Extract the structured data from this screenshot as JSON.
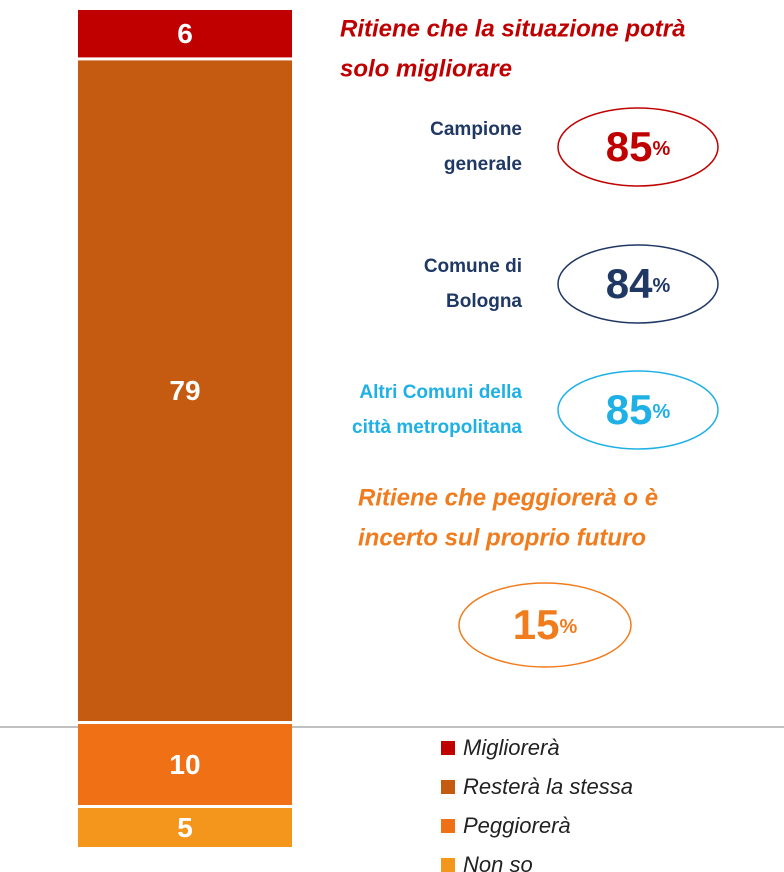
{
  "chart_data": {
    "type": "bar",
    "series": [
      {
        "name": "Migliorerà",
        "color": "#c00000",
        "values": [
          6
        ]
      },
      {
        "name": "Resterà la stessa",
        "color": "#c55a11",
        "values": [
          79
        ]
      },
      {
        "name": "Peggiorerà",
        "color": "#f07016",
        "values": [
          10
        ]
      },
      {
        "name": "Non so",
        "color": "#f5961c",
        "values": [
          5
        ]
      }
    ],
    "groups": [
      {
        "heading": [
          "Ritiene che la situazione potrà",
          "solo migliorare"
        ],
        "color": "#c00000",
        "callouts": [
          {
            "label": [
              "Campione",
              "generale"
            ],
            "label_color": "#1f3864",
            "value": 85,
            "suffix": "%",
            "color": "#c00000"
          },
          {
            "label": [
              "Comune di",
              "Bologna"
            ],
            "label_color": "#1f3864",
            "value": 84,
            "suffix": "%",
            "color": "#1f3864"
          },
          {
            "label": [
              "Altri Comuni della",
              "città metropolitana"
            ],
            "label_color": "#1fb0e6",
            "value": 85,
            "suffix": "%",
            "color": "#1fb0e6"
          }
        ]
      },
      {
        "heading": [
          "Ritiene che peggiorerà o è",
          "incerto sul proprio futuro"
        ],
        "color": "#f07c1d",
        "callouts": [
          {
            "value": 15,
            "suffix": "%",
            "color": "#f07c1d"
          }
        ]
      }
    ]
  }
}
